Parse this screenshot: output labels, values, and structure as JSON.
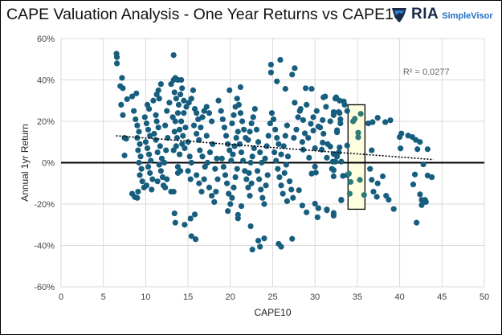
{
  "chart_data": {
    "type": "scatter",
    "title": "CAPE Valuation Analysis - One Year Returns vs CAPE10",
    "xlabel": "CAPE10",
    "ylabel": "Annual 1yr Return",
    "xlim": [
      0,
      50
    ],
    "ylim": [
      -60,
      60
    ],
    "x_ticks": [
      "0",
      "5",
      "10",
      "15",
      "20",
      "25",
      "30",
      "35",
      "40",
      "45",
      "50"
    ],
    "y_ticks": [
      "60%",
      "40%",
      "20%",
      "0%",
      "-20%",
      "-40%",
      "-60%"
    ],
    "grid": true,
    "trendline": {
      "type": "linear",
      "style": "dotted",
      "from": [
        6.5,
        13
      ],
      "to": [
        44,
        1.5
      ],
      "r2_label": "R² = 0.0277"
    },
    "highlight_box": {
      "x": [
        33.9,
        35.9
      ],
      "y": [
        -22.5,
        28
      ],
      "fill": "#fdfde0"
    },
    "point_color": "#175e7e",
    "highlight_point_color": "#2e7a78",
    "points": [
      [
        6.55,
        52.7
      ],
      [
        6.6,
        48
      ],
      [
        6.6,
        51
      ],
      [
        7.2,
        41
      ],
      [
        7.0,
        37
      ],
      [
        7.3,
        36
      ],
      [
        7.8,
        30.7
      ],
      [
        8.4,
        32
      ],
      [
        8.9,
        33.5
      ],
      [
        7.1,
        28
      ],
      [
        7.3,
        23
      ],
      [
        7.5,
        3.5
      ],
      [
        7.7,
        11.6
      ],
      [
        7.5,
        12
      ],
      [
        8.7,
        -16.6
      ],
      [
        8.4,
        -15
      ],
      [
        9.0,
        -17
      ],
      [
        13.3,
        52
      ],
      [
        13.4,
        -24.5
      ],
      [
        13.5,
        -29
      ],
      [
        14.6,
        -30
      ],
      [
        15.3,
        -27
      ],
      [
        15.8,
        -25
      ],
      [
        15.4,
        -35.5
      ],
      [
        15.9,
        -37
      ],
      [
        13.0,
        -14
      ],
      [
        13.3,
        -14
      ],
      [
        13.8,
        -5
      ],
      [
        25.9,
        49.7
      ],
      [
        24.8,
        47.4
      ],
      [
        24.8,
        43.6
      ],
      [
        27.6,
        45.7
      ],
      [
        27.3,
        42.6
      ],
      [
        25.5,
        39.3
      ],
      [
        26.5,
        35.7
      ],
      [
        19.9,
        35
      ],
      [
        21.2,
        36.5
      ],
      [
        28.9,
        36
      ],
      [
        29.6,
        35.7
      ],
      [
        22.6,
        -42
      ],
      [
        23.5,
        -40.6
      ],
      [
        25.7,
        -39.2
      ],
      [
        26.0,
        -40.6
      ],
      [
        23.3,
        -37.7
      ],
      [
        24.0,
        -36.6
      ],
      [
        27.3,
        -36.8
      ],
      [
        22.4,
        -30.7
      ],
      [
        20.9,
        -25.2
      ],
      [
        20.9,
        -26.9
      ],
      [
        19.7,
        -23.4
      ],
      [
        21.3,
        -21
      ],
      [
        26.7,
        -18.6
      ],
      [
        27.4,
        -17
      ],
      [
        28.1,
        -13.3
      ],
      [
        28.5,
        -20.7
      ],
      [
        29.0,
        -24
      ],
      [
        30.0,
        -19.8
      ],
      [
        30.4,
        -22
      ],
      [
        30.3,
        -26.4
      ],
      [
        31.4,
        -23
      ],
      [
        32.2,
        -25.6
      ],
      [
        33.1,
        -17.9
      ],
      [
        29.6,
        -5.3
      ],
      [
        30.1,
        -4.8
      ],
      [
        32.2,
        -6.6
      ],
      [
        32.0,
        -3
      ],
      [
        32.3,
        0.5
      ],
      [
        33.1,
        0.5
      ],
      [
        32.6,
        3
      ],
      [
        29.3,
        2.4
      ],
      [
        30.0,
        7
      ],
      [
        30.9,
        9.7
      ],
      [
        31.8,
        7.8
      ],
      [
        32.8,
        5
      ],
      [
        32.6,
        15.7
      ],
      [
        33.0,
        21
      ],
      [
        32.8,
        24.5
      ],
      [
        32.2,
        24.5
      ],
      [
        31.3,
        27
      ],
      [
        31.0,
        31.6
      ],
      [
        32.5,
        31.6
      ],
      [
        33.4,
        29.6
      ],
      [
        27.6,
        29
      ],
      [
        28.2,
        25
      ],
      [
        28.6,
        20.6
      ],
      [
        29.5,
        18.8
      ],
      [
        30.4,
        17.5
      ],
      [
        30.9,
        20.6
      ],
      [
        29.8,
        15.5
      ],
      [
        28.8,
        14.2
      ],
      [
        28.6,
        6.3
      ],
      [
        30.8,
        6.3
      ],
      [
        31.4,
        2.4
      ],
      [
        30.0,
        -1.9
      ],
      [
        36.3,
        19
      ],
      [
        36.8,
        19.6
      ],
      [
        37.4,
        21.7
      ],
      [
        38.3,
        19.6
      ],
      [
        38.9,
        20.5
      ],
      [
        36.7,
        6
      ],
      [
        36.5,
        -3
      ],
      [
        36.7,
        -8.3
      ],
      [
        37.4,
        -10
      ],
      [
        38.0,
        -6.6
      ],
      [
        36.9,
        -14
      ],
      [
        37.3,
        -16.5
      ],
      [
        38.4,
        -16
      ],
      [
        38.7,
        -17.9
      ],
      [
        39.3,
        -22.4
      ],
      [
        40.2,
        14.1
      ],
      [
        40.0,
        12.4
      ],
      [
        41.0,
        13.1
      ],
      [
        41.5,
        12.4
      ],
      [
        41.9,
        11
      ],
      [
        42.4,
        10
      ],
      [
        40.1,
        6.9
      ],
      [
        42.1,
        6.5
      ],
      [
        43.3,
        6.5
      ],
      [
        42.8,
        -0.8
      ],
      [
        41.8,
        -5.7
      ],
      [
        43.3,
        -6.2
      ],
      [
        43.8,
        -7
      ],
      [
        41.6,
        -10.5
      ],
      [
        42.4,
        -15.3
      ],
      [
        42.6,
        -18
      ],
      [
        43.0,
        -18
      ],
      [
        42.6,
        -20.5
      ],
      [
        43.1,
        -19
      ],
      [
        42.0,
        -29
      ],
      [
        31.2,
        32
      ],
      [
        32.4,
        31
      ],
      [
        32.9,
        30
      ],
      [
        33.5,
        28
      ],
      [
        33.8,
        25
      ],
      [
        32.2,
        23
      ],
      [
        32.9,
        24
      ],
      [
        33.0,
        19
      ],
      [
        32.6,
        14.7
      ],
      [
        33.8,
        8.3
      ],
      [
        32.9,
        7.4
      ],
      [
        32.2,
        4.2
      ],
      [
        32.1,
        0.5
      ],
      [
        32.4,
        0.5
      ],
      [
        32.2,
        -3.6
      ],
      [
        33.3,
        -6.4
      ],
      [
        33.8,
        -6
      ],
      [
        33.1,
        -18.2
      ],
      [
        31.4,
        -22.6
      ],
      [
        32.2,
        -24.3
      ],
      [
        8.6,
        25
      ],
      [
        8.8,
        21
      ],
      [
        9.0,
        18
      ],
      [
        9.2,
        15
      ],
      [
        9.0,
        12
      ],
      [
        9.3,
        9
      ],
      [
        9.1,
        6
      ],
      [
        9.4,
        3
      ],
      [
        9.2,
        0
      ],
      [
        9.5,
        -3
      ],
      [
        9.3,
        -6
      ],
      [
        9.6,
        -9
      ],
      [
        9.8,
        -12
      ],
      [
        9.1,
        -14
      ],
      [
        9.9,
        22
      ],
      [
        10.2,
        28
      ],
      [
        10.4,
        26
      ],
      [
        10.1,
        19
      ],
      [
        10.3,
        16
      ],
      [
        10.5,
        13
      ],
      [
        10.0,
        10
      ],
      [
        10.2,
        7
      ],
      [
        10.4,
        4
      ],
      [
        10.6,
        1
      ],
      [
        10.3,
        -2
      ],
      [
        10.5,
        -5
      ],
      [
        10.8,
        -8
      ],
      [
        10.1,
        -11
      ],
      [
        10.7,
        -13
      ],
      [
        11.0,
        14
      ],
      [
        11.2,
        23
      ],
      [
        10.9,
        30
      ],
      [
        11.3,
        33
      ],
      [
        11.5,
        35
      ],
      [
        11.8,
        38
      ],
      [
        11.6,
        31
      ],
      [
        11.3,
        20
      ],
      [
        11.5,
        17
      ],
      [
        11.2,
        11
      ],
      [
        11.7,
        8
      ],
      [
        11.4,
        5
      ],
      [
        11.9,
        2
      ],
      [
        11.6,
        -1
      ],
      [
        11.8,
        -4
      ],
      [
        12.0,
        -7
      ],
      [
        11.4,
        -9
      ],
      [
        12.1,
        -11
      ],
      [
        12.3,
        -12
      ],
      [
        12.5,
        -8
      ],
      [
        12.2,
        0
      ],
      [
        12.4,
        6
      ],
      [
        12.6,
        12
      ],
      [
        12.3,
        18
      ],
      [
        12.5,
        25
      ],
      [
        12.8,
        29
      ],
      [
        13.0,
        38
      ],
      [
        13.3,
        40
      ],
      [
        13.5,
        41
      ],
      [
        13.8,
        40
      ],
      [
        14.2,
        40
      ],
      [
        13.4,
        34
      ],
      [
        13.6,
        31
      ],
      [
        13.9,
        28
      ],
      [
        14.1,
        33
      ],
      [
        14.3,
        36
      ],
      [
        14.5,
        30
      ],
      [
        13.2,
        22
      ],
      [
        13.5,
        20
      ],
      [
        13.8,
        24
      ],
      [
        14.2,
        20
      ],
      [
        14.5,
        24
      ],
      [
        14.8,
        27
      ],
      [
        13.4,
        15
      ],
      [
        13.7,
        12
      ],
      [
        14.0,
        16
      ],
      [
        14.4,
        13
      ],
      [
        14.7,
        17
      ],
      [
        13.3,
        6
      ],
      [
        13.6,
        8
      ],
      [
        14.0,
        4
      ],
      [
        14.3,
        9
      ],
      [
        14.6,
        7
      ],
      [
        15.0,
        10
      ],
      [
        13.8,
        -2
      ],
      [
        14.1,
        -4
      ],
      [
        15.2,
        3
      ],
      [
        15.4,
        0
      ],
      [
        15.0,
        -4
      ],
      [
        15.3,
        -8
      ],
      [
        15.1,
        29
      ],
      [
        15.4,
        31
      ],
      [
        15.6,
        35
      ],
      [
        15.8,
        26
      ],
      [
        16.0,
        24
      ],
      [
        16.2,
        21
      ],
      [
        15.7,
        18
      ],
      [
        16.0,
        14
      ],
      [
        16.3,
        11
      ],
      [
        16.5,
        17
      ],
      [
        16.7,
        22
      ],
      [
        16.9,
        25
      ],
      [
        17.2,
        27
      ],
      [
        17.5,
        24
      ],
      [
        17.8,
        20
      ],
      [
        16.4,
        6
      ],
      [
        16.7,
        3
      ],
      [
        16.0,
        -6
      ],
      [
        16.3,
        -10
      ],
      [
        16.6,
        -14
      ],
      [
        16.9,
        -8
      ],
      [
        17.0,
        -2
      ],
      [
        17.3,
        0
      ],
      [
        17.6,
        5
      ],
      [
        17.9,
        9
      ],
      [
        17.2,
        13
      ],
      [
        17.5,
        -12
      ],
      [
        17.8,
        -16
      ],
      [
        18.1,
        -19
      ],
      [
        18.3,
        -14
      ],
      [
        18.5,
        -8
      ],
      [
        18.2,
        -3
      ],
      [
        18.4,
        2
      ],
      [
        18.6,
        30
      ],
      [
        18.9,
        25
      ],
      [
        19.1,
        21
      ],
      [
        19.3,
        17
      ],
      [
        19.5,
        13
      ],
      [
        19.7,
        9
      ],
      [
        19.9,
        6
      ],
      [
        19.0,
        2
      ],
      [
        19.2,
        -2
      ],
      [
        19.4,
        -6
      ],
      [
        19.6,
        -10
      ],
      [
        19.8,
        -15
      ],
      [
        20.0,
        -20
      ],
      [
        20.2,
        -17
      ],
      [
        20.4,
        -12
      ],
      [
        20.6,
        -7
      ],
      [
        20.8,
        -3
      ],
      [
        20.1,
        1
      ],
      [
        20.3,
        4
      ],
      [
        20.5,
        8
      ],
      [
        20.7,
        12
      ],
      [
        20.9,
        15
      ],
      [
        20.2,
        19
      ],
      [
        20.4,
        23
      ],
      [
        20.6,
        27
      ],
      [
        20.8,
        31
      ],
      [
        21.0,
        28
      ],
      [
        21.2,
        24
      ],
      [
        21.4,
        20
      ],
      [
        21.6,
        16
      ],
      [
        21.8,
        12
      ],
      [
        21.1,
        9
      ],
      [
        21.3,
        5
      ],
      [
        21.5,
        1
      ],
      [
        21.7,
        -4
      ],
      [
        21.9,
        -8
      ],
      [
        22.1,
        -12
      ],
      [
        22.3,
        -16
      ],
      [
        22.5,
        -10
      ],
      [
        22.2,
        -5
      ],
      [
        22.4,
        0
      ],
      [
        22.6,
        3
      ],
      [
        22.8,
        7
      ],
      [
        22.1,
        11
      ],
      [
        22.3,
        15
      ],
      [
        22.5,
        19
      ],
      [
        22.7,
        22
      ],
      [
        22.9,
        26
      ],
      [
        23.1,
        16
      ],
      [
        23.3,
        10
      ],
      [
        23.5,
        5
      ],
      [
        23.7,
        0
      ],
      [
        23.2,
        -4
      ],
      [
        23.4,
        -8
      ],
      [
        23.6,
        -13
      ],
      [
        23.8,
        -17
      ],
      [
        24.0,
        -20
      ],
      [
        24.2,
        -11
      ],
      [
        24.4,
        -6
      ],
      [
        24.1,
        2
      ],
      [
        24.3,
        8
      ],
      [
        24.5,
        13
      ],
      [
        24.7,
        19
      ],
      [
        24.9,
        24
      ],
      [
        25.1,
        21
      ],
      [
        25.3,
        16
      ],
      [
        25.5,
        12
      ],
      [
        25.7,
        9
      ],
      [
        25.2,
        5
      ],
      [
        25.4,
        1
      ],
      [
        25.6,
        -3
      ],
      [
        25.8,
        -7
      ],
      [
        26.0,
        -11
      ],
      [
        26.2,
        -15
      ],
      [
        26.0,
        4
      ],
      [
        26.3,
        8
      ],
      [
        26.5,
        13
      ],
      [
        26.7,
        18
      ],
      [
        26.4,
        -5
      ],
      [
        26.6,
        -1
      ],
      [
        26.8,
        3
      ],
      [
        27.0,
        -9
      ],
      [
        27.2,
        -13
      ],
      [
        27.5,
        12
      ],
      [
        27.8,
        16
      ],
      [
        28.0,
        22
      ],
      [
        28.3,
        26
      ],
      [
        29.0,
        28
      ],
      [
        28.5,
        10
      ],
      [
        29.2,
        12
      ],
      [
        29.8,
        22
      ],
      [
        30.2,
        25
      ],
      [
        30.6,
        17
      ],
      [
        31.0,
        14
      ],
      [
        31.5,
        9
      ],
      [
        31.8,
        20
      ]
    ],
    "highlight_points": [
      [
        34.7,
        21.2
      ],
      [
        35.4,
        23.6
      ],
      [
        34.5,
        20
      ],
      [
        35.1,
        14.5
      ],
      [
        35.1,
        12.3
      ],
      [
        34.2,
        -9.3
      ],
      [
        35.3,
        -8.3
      ],
      [
        34.1,
        -15
      ],
      [
        35.8,
        -15.6
      ],
      [
        34.0,
        -5.3
      ]
    ]
  },
  "brand": {
    "name": "RIA",
    "product": "SimpleVisor"
  }
}
